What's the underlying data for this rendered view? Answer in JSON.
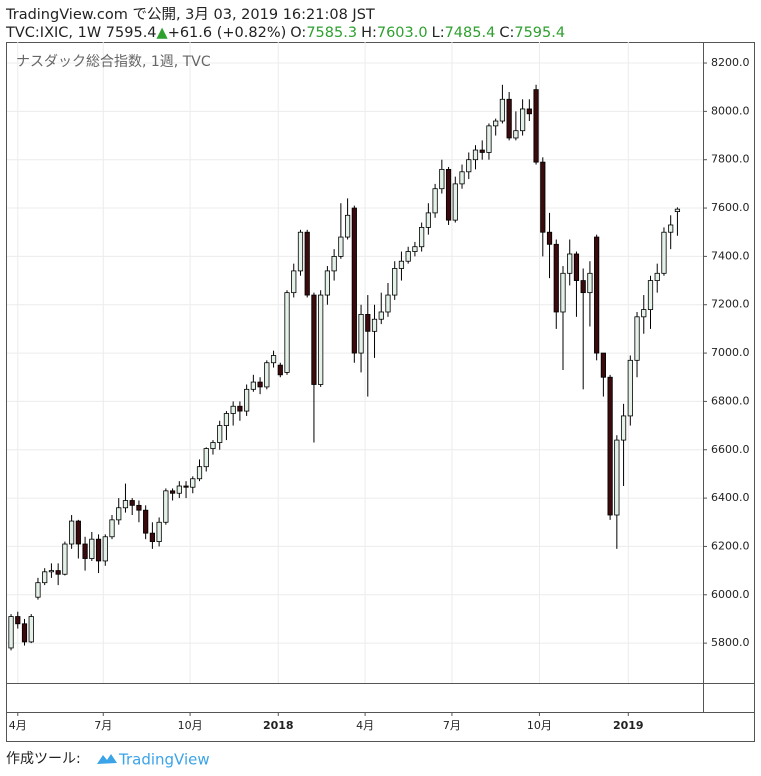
{
  "chart_data": {
    "type": "candlestick",
    "title": "ナスダック総合指数, 1週, TVC",
    "header": {
      "line1": "TradingView.com で公開, 3月 03, 2019 16:21:08 JST",
      "symbol": "TVC:IXIC, 1W 7595.4",
      "arrow": "▲",
      "change": "+61.6 (+0.82%)",
      "ohlc": [
        {
          "label": "O:",
          "value": "7585.3"
        },
        {
          "label": "H:",
          "value": "7603.0"
        },
        {
          "label": "L:",
          "value": "7485.4"
        },
        {
          "label": "C:",
          "value": "7595.4"
        }
      ]
    },
    "footer": {
      "text": "作成ツール:",
      "brand": "TradingView"
    },
    "up_color": "#e4f1e8",
    "down_color": "#3a0a0c",
    "wick_color": "#000000",
    "quote_color": "#2ea02e",
    "grid": true,
    "ylim": [
      5635,
      8287
    ],
    "yticks": [
      {
        "value": 5800,
        "label": "5800.0"
      },
      {
        "value": 6000,
        "label": "6000.0"
      },
      {
        "value": 6200,
        "label": "6200.0"
      },
      {
        "value": 6400,
        "label": "6400.0"
      },
      {
        "value": 6600,
        "label": "6600.0"
      },
      {
        "value": 6800,
        "label": "6800.0"
      },
      {
        "value": 7000,
        "label": "7000.0"
      },
      {
        "value": 7200,
        "label": "7200.0"
      },
      {
        "value": 7400,
        "label": "7400.0"
      },
      {
        "value": 7600,
        "label": "7600.0"
      },
      {
        "value": 7800,
        "label": "7800.0"
      },
      {
        "value": 8000,
        "label": "8000.0"
      },
      {
        "value": 8200,
        "label": "8200.0"
      }
    ],
    "xlim": [
      -0.6,
      102.8
    ],
    "xticks": [
      {
        "value": 1,
        "label": "4月"
      },
      {
        "value": 13.7,
        "label": "7月"
      },
      {
        "value": 26.6,
        "label": "10月"
      },
      {
        "value": 39.7,
        "label": "2018"
      },
      {
        "value": 52.6,
        "label": "4月"
      },
      {
        "value": 65.5,
        "label": "7月"
      },
      {
        "value": 78.5,
        "label": "10月"
      },
      {
        "value": 91.7,
        "label": "2019"
      }
    ],
    "open": [
      5780,
      5910,
      5880,
      5805,
      5990,
      6050,
      6095,
      6100,
      6085,
      6210,
      6305,
      6210,
      6150,
      6230,
      6140,
      6240,
      6310,
      6360,
      6390,
      6370,
      6350,
      6255,
      6220,
      6300,
      6430,
      6420,
      6450,
      6445,
      6480,
      6530,
      6605,
      6630,
      6700,
      6750,
      6780,
      6760,
      6850,
      6880,
      6860,
      6960,
      6950,
      6920,
      7250,
      7340,
      7500,
      7240,
      6870,
      7240,
      7340,
      7400,
      7480,
      7600,
      7000,
      7160,
      7090,
      7140,
      7170,
      7240,
      7350,
      7380,
      7420,
      7440,
      7520,
      7580,
      7680,
      7760,
      7550,
      7700,
      7750,
      7800,
      7840,
      7830,
      7940,
      7960,
      8050,
      7890,
      7920,
      8010,
      8090,
      7790,
      7500,
      7450,
      7170,
      7330,
      7410,
      7300,
      7250,
      7480,
      7000,
      6900,
      6330,
      6640,
      6740,
      6970,
      7150,
      7180,
      7300,
      7330,
      7500,
      7585.3
    ],
    "high": [
      5920,
      5930,
      5900,
      5920,
      6070,
      6110,
      6130,
      6130,
      6220,
      6330,
      6310,
      6240,
      6260,
      6250,
      6250,
      6330,
      6400,
      6460,
      6400,
      6390,
      6370,
      6300,
      6320,
      6440,
      6440,
      6470,
      6470,
      6490,
      6560,
      6610,
      6640,
      6720,
      6760,
      6800,
      6800,
      6870,
      6910,
      6900,
      6970,
      7010,
      6960,
      7260,
      7370,
      7510,
      7510,
      7250,
      7260,
      7360,
      7430,
      7620,
      7640,
      7610,
      7200,
      7240,
      7200,
      7250,
      7290,
      7380,
      7420,
      7440,
      7460,
      7540,
      7620,
      7700,
      7800,
      7770,
      7730,
      7780,
      7830,
      7860,
      7880,
      7950,
      7970,
      8110,
      8080,
      8000,
      8050,
      8050,
      8110,
      7810,
      7580,
      7470,
      7360,
      7470,
      7420,
      7350,
      7380,
      7490,
      7000,
      6910,
      6660,
      6790,
      6990,
      7170,
      7240,
      7320,
      7370,
      7520,
      7570,
      7603.0
    ],
    "low": [
      5770,
      5860,
      5790,
      5800,
      5980,
      6040,
      6070,
      6040,
      6080,
      6190,
      6150,
      6100,
      6140,
      6090,
      6120,
      6230,
      6290,
      6340,
      6330,
      6300,
      6230,
      6190,
      6200,
      6290,
      6390,
      6400,
      6400,
      6420,
      6470,
      6510,
      6580,
      6600,
      6640,
      6700,
      6720,
      6740,
      6840,
      6830,
      6850,
      6940,
      6900,
      6910,
      7230,
      7320,
      7230,
      6630,
      6860,
      7200,
      7300,
      7390,
      7470,
      6960,
      6920,
      6820,
      6980,
      7120,
      7150,
      7220,
      7300,
      7370,
      7400,
      7420,
      7490,
      7560,
      7660,
      7530,
      7540,
      7680,
      7720,
      7760,
      7800,
      7800,
      7900,
      7950,
      7880,
      7880,
      7900,
      7960,
      7780,
      7400,
      7310,
      7100,
      6930,
      7280,
      7150,
      6850,
      7110,
      6970,
      6820,
      6310,
      6190,
      6450,
      6700,
      6900,
      7080,
      7100,
      7250,
      7320,
      7430,
      7485.4
    ],
    "close": [
      5910,
      5880,
      5805,
      5910,
      6050,
      6095,
      6100,
      6085,
      6210,
      6305,
      6210,
      6150,
      6230,
      6140,
      6240,
      6310,
      6360,
      6390,
      6370,
      6350,
      6255,
      6220,
      6300,
      6430,
      6420,
      6450,
      6445,
      6480,
      6530,
      6605,
      6630,
      6700,
      6750,
      6780,
      6760,
      6850,
      6880,
      6860,
      6960,
      6990,
      6910,
      7250,
      7340,
      7500,
      7240,
      6870,
      7240,
      7340,
      7400,
      7480,
      7570,
      7000,
      7160,
      7090,
      7140,
      7170,
      7240,
      7350,
      7380,
      7420,
      7440,
      7520,
      7580,
      7680,
      7760,
      7550,
      7700,
      7750,
      7800,
      7840,
      7830,
      7940,
      7960,
      8050,
      7890,
      7920,
      8010,
      7990,
      7790,
      7500,
      7450,
      7170,
      7330,
      7410,
      7300,
      7250,
      7330,
      7000,
      6900,
      6330,
      6640,
      6740,
      6970,
      7150,
      7180,
      7300,
      7330,
      7500,
      7530,
      7595.4
    ]
  }
}
